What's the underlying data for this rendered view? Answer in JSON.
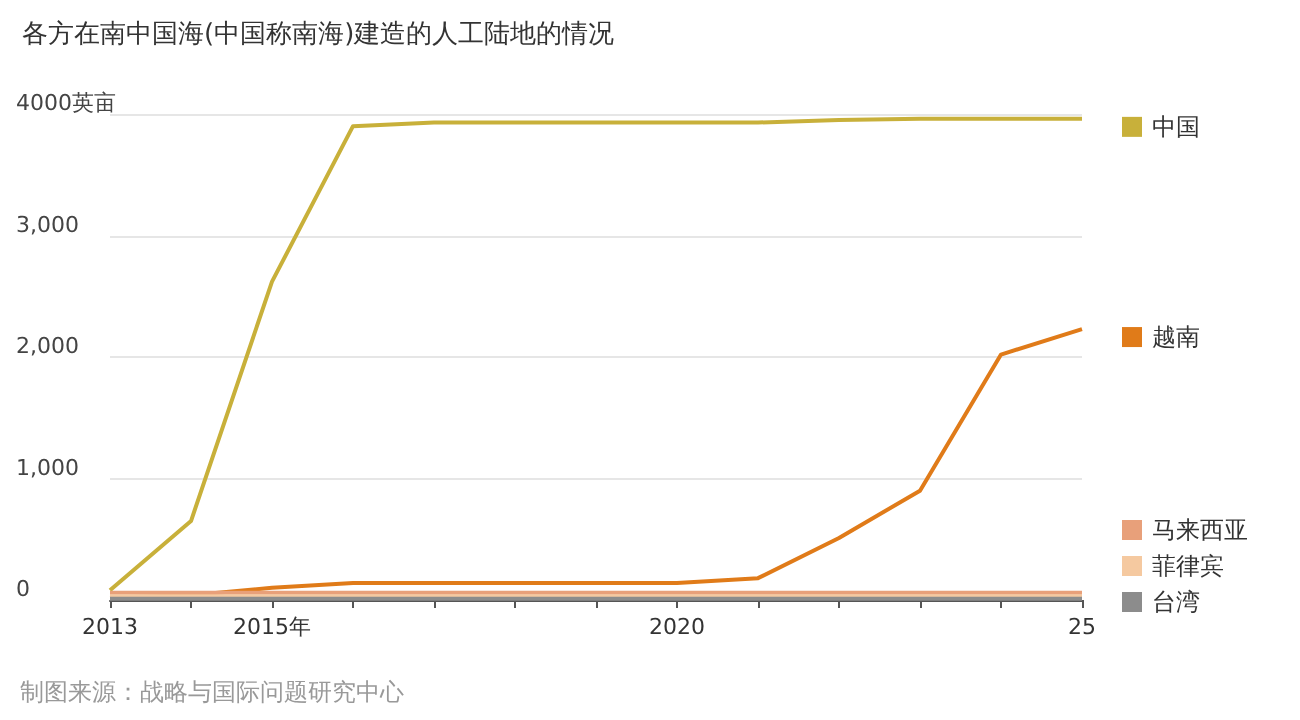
{
  "chart_data": {
    "type": "line",
    "title": "各方在南中国海(中国称南海)建造的人工陆地的情况",
    "annotations": [
      "制图来源：战略与国际问题研究中心"
    ],
    "x": [
      2013,
      2014,
      2015,
      2016,
      2017,
      2018,
      2019,
      2020,
      2021,
      2022,
      2023,
      2024,
      2025
    ],
    "series": [
      {
        "name": "中国",
        "color": "#c8b03a",
        "values": [
          80,
          650,
          2620,
          3900,
          3930,
          3930,
          3930,
          3930,
          3930,
          3950,
          3960,
          3960,
          3960
        ]
      },
      {
        "name": "越南",
        "color": "#e07b19",
        "values": [
          20,
          40,
          100,
          140,
          140,
          140,
          140,
          140,
          180,
          510,
          900,
          2020,
          2230
        ]
      },
      {
        "name": "马来西亚",
        "color": "#e8a07a",
        "values": [
          60,
          60,
          60,
          60,
          60,
          60,
          60,
          60,
          60,
          60,
          60,
          60,
          60
        ]
      },
      {
        "name": "菲律宾",
        "color": "#f5c9a0",
        "values": [
          30,
          30,
          30,
          30,
          30,
          30,
          30,
          30,
          30,
          30,
          30,
          30,
          30
        ]
      },
      {
        "name": "台湾",
        "color": "#8c8c8c",
        "values": [
          10,
          10,
          10,
          10,
          10,
          10,
          10,
          10,
          10,
          10,
          10,
          10,
          10
        ]
      }
    ],
    "xlim": [
      2013,
      2025
    ],
    "xticks": [
      2013,
      {
        "value": 2014,
        "label": null
      },
      {
        "value": 2015,
        "label": "2015年"
      },
      {
        "value": 2016,
        "label": null
      },
      {
        "value": 2017,
        "label": null
      },
      {
        "value": 2018,
        "label": null
      },
      {
        "value": 2019,
        "label": null
      },
      2020,
      {
        "value": 2021,
        "label": null
      },
      {
        "value": 2022,
        "label": null
      },
      {
        "value": 2023,
        "label": null
      },
      {
        "value": 2024,
        "label": null
      },
      {
        "value": 2025,
        "label": "25"
      }
    ],
    "ylim": [
      0,
      4000
    ],
    "yticks": [
      {
        "value": 0,
        "label": "0"
      },
      {
        "value": 1000,
        "label": "1,000"
      },
      {
        "value": 2000,
        "label": "2,000"
      },
      {
        "value": 3000,
        "label": "3,000"
      },
      {
        "value": 4000,
        "label": "4000英亩"
      }
    ],
    "grid": "y",
    "legend": "right",
    "marker": "none",
    "line_style": "solid"
  }
}
